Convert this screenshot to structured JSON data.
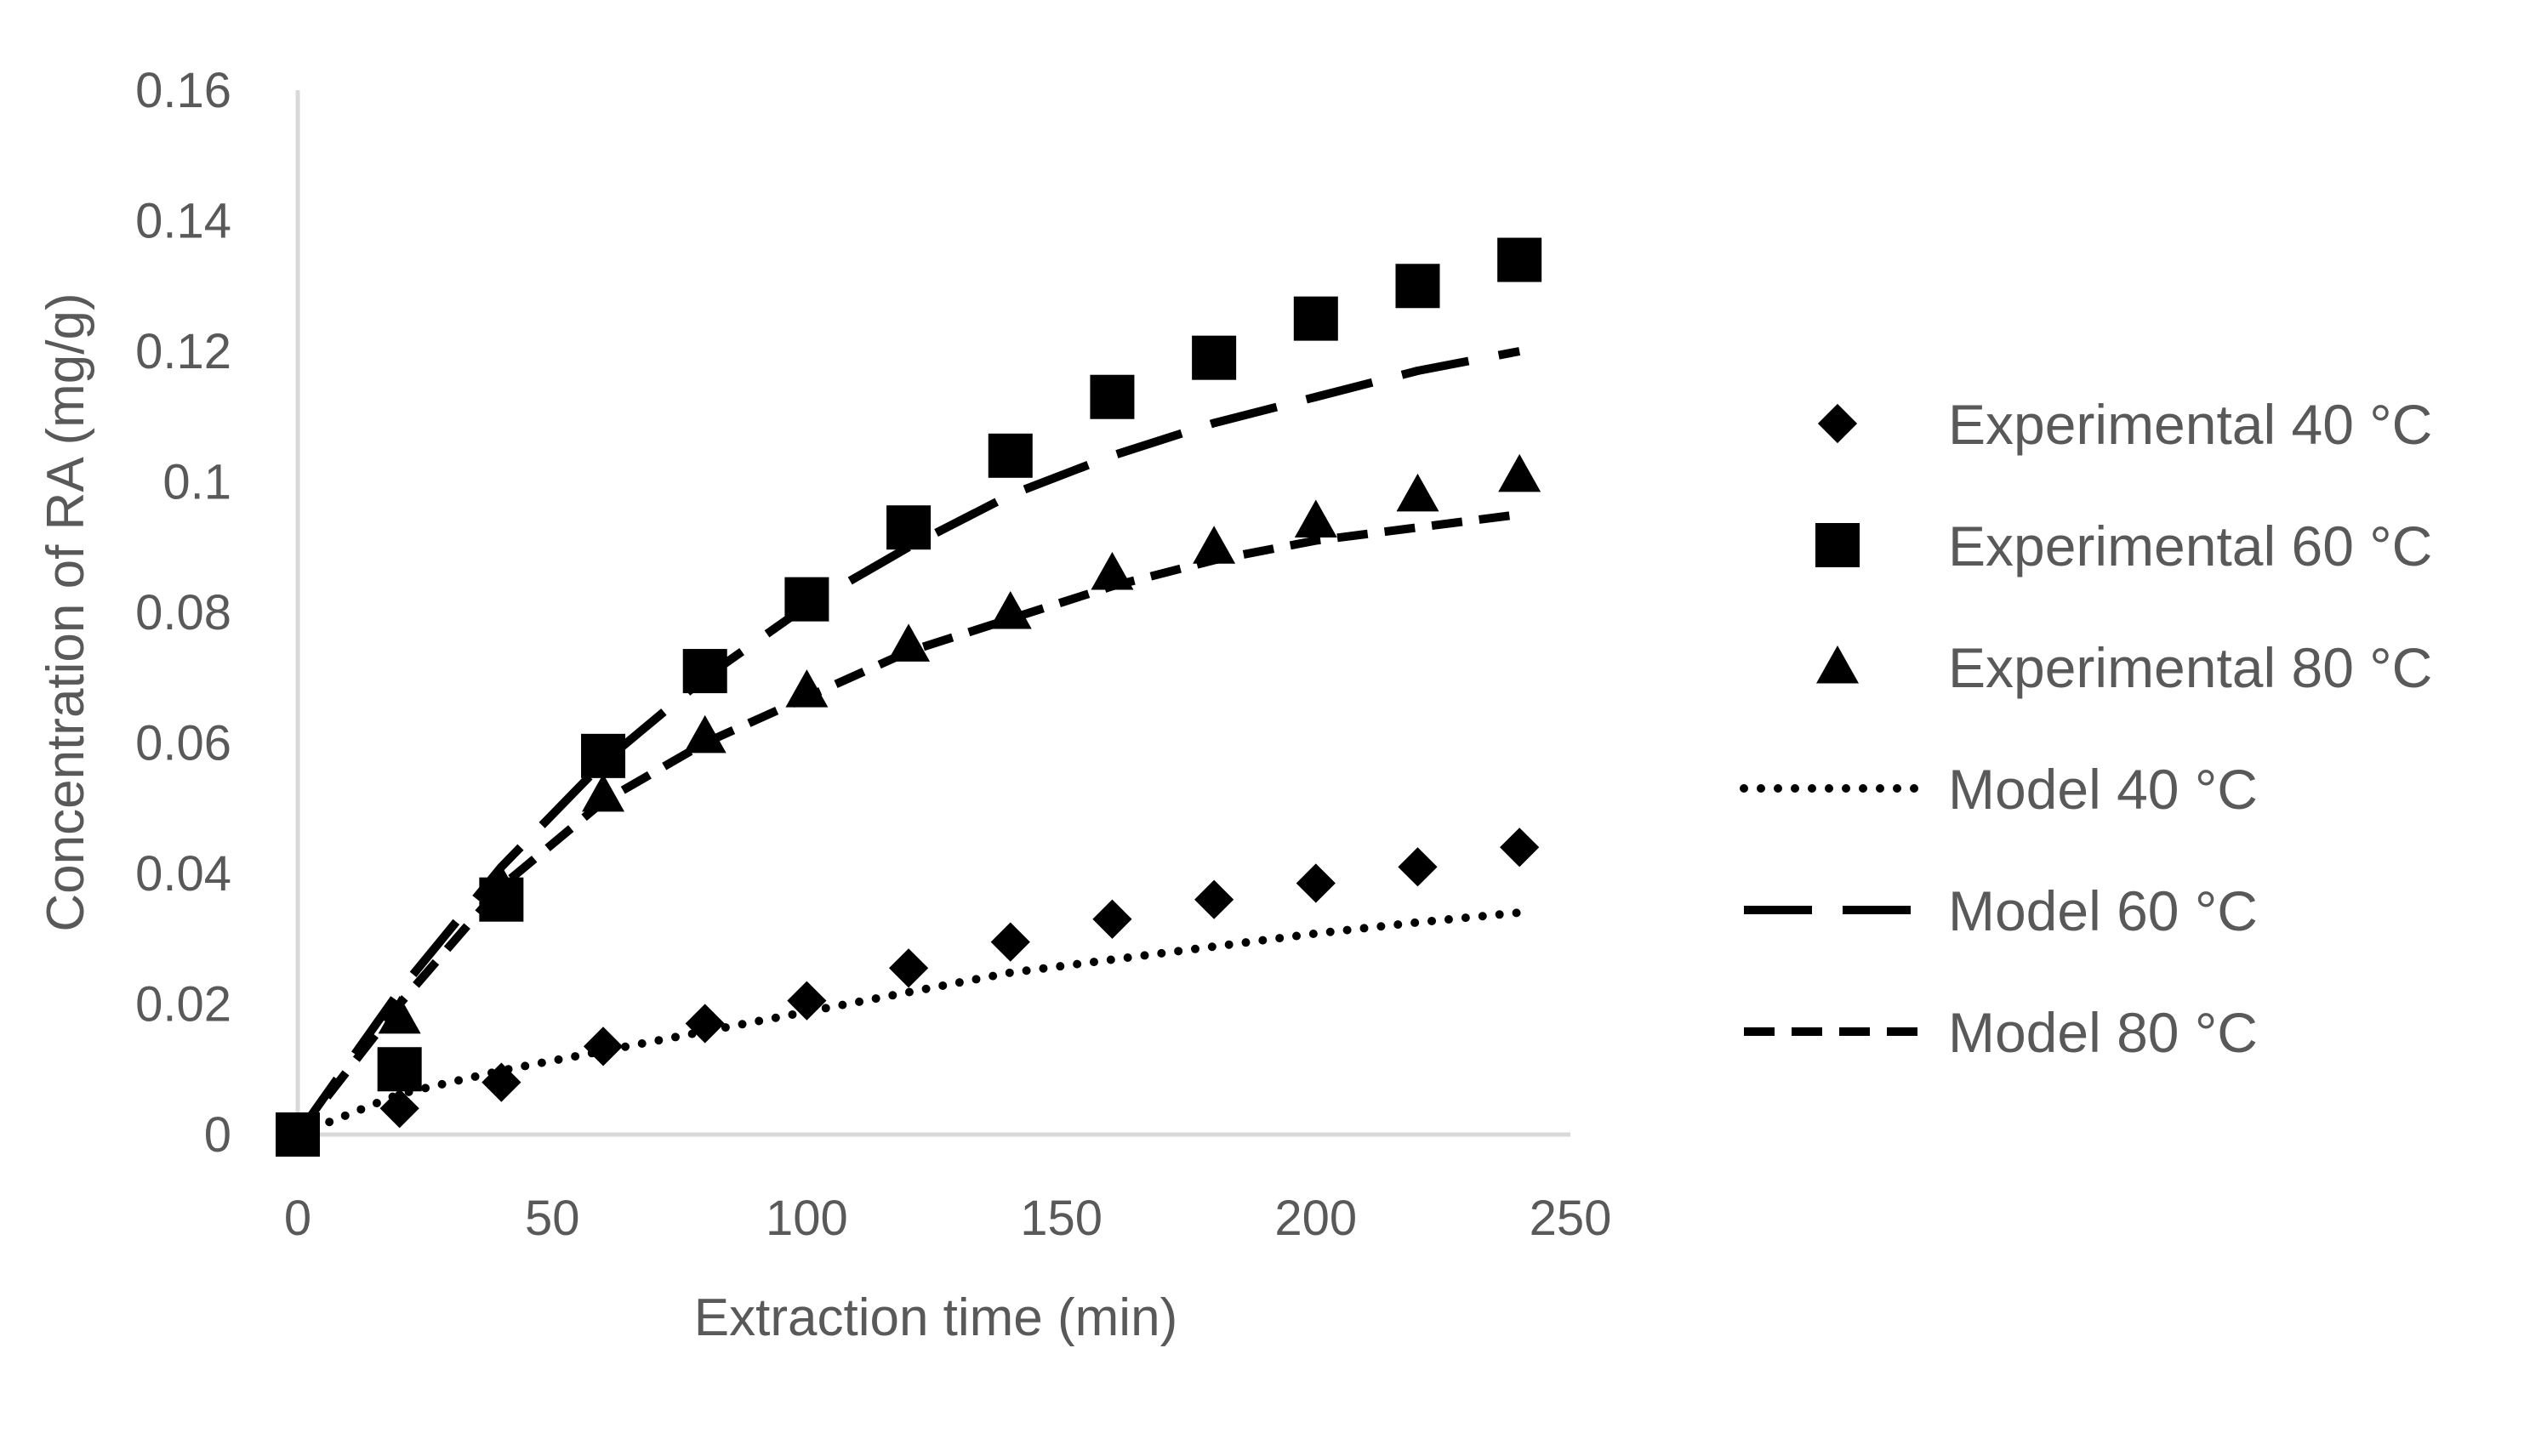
{
  "chart_data": {
    "type": "scatter",
    "title": "",
    "xlabel": "Extraction time (min)",
    "ylabel": "Concentration of RA (mg/g)",
    "xlim": [
      0,
      250
    ],
    "ylim": [
      0,
      0.16
    ],
    "x_ticks": [
      0,
      50,
      100,
      150,
      200,
      250
    ],
    "y_ticks": [
      0,
      0.02,
      0.04,
      0.06,
      0.08,
      0.1,
      0.12,
      0.14,
      0.16
    ],
    "x_tick_labels": [
      "0",
      "50",
      "100",
      "150",
      "200",
      "250"
    ],
    "y_tick_labels": [
      "0",
      "0.02",
      "0.04",
      "0.06",
      "0.08",
      "0.1",
      "0.12",
      "0.14",
      "0.16"
    ],
    "grid": false,
    "legend_position": "right",
    "series": [
      {
        "name": "Experimental 40 °C",
        "kind": "marker",
        "marker": "diamond",
        "color": "#000000",
        "x": [
          0,
          20,
          40,
          60,
          80,
          100,
          120,
          140,
          160,
          180,
          200,
          220,
          240
        ],
        "y": [
          0,
          0.004,
          0.008,
          0.0135,
          0.017,
          0.0205,
          0.0255,
          0.0295,
          0.033,
          0.036,
          0.0385,
          0.041,
          0.044
        ]
      },
      {
        "name": "Experimental 60 °C",
        "kind": "marker",
        "marker": "square",
        "color": "#000000",
        "x": [
          0,
          20,
          40,
          60,
          80,
          100,
          120,
          140,
          160,
          180,
          200,
          220,
          240
        ],
        "y": [
          0,
          0.01,
          0.036,
          0.058,
          0.071,
          0.082,
          0.093,
          0.104,
          0.113,
          0.119,
          0.125,
          0.13,
          0.134
        ]
      },
      {
        "name": "Experimental 80 °C",
        "kind": "marker",
        "marker": "triangle",
        "color": "#000000",
        "x": [
          0,
          20,
          40,
          60,
          80,
          100,
          120,
          140,
          160,
          180,
          200,
          220,
          240
        ],
        "y": [
          0,
          0.018,
          0.038,
          0.052,
          0.061,
          0.068,
          0.075,
          0.08,
          0.086,
          0.09,
          0.094,
          0.098,
          0.101
        ]
      },
      {
        "name": "Model 40 °C",
        "kind": "line",
        "dash": "dotted",
        "color": "#000000",
        "x": [
          0,
          20,
          40,
          60,
          80,
          100,
          120,
          140,
          160,
          180,
          200,
          220,
          240
        ],
        "y": [
          0,
          0.0062,
          0.0098,
          0.0128,
          0.0158,
          0.0188,
          0.0218,
          0.0248,
          0.0268,
          0.0288,
          0.0308,
          0.0325,
          0.034
        ]
      },
      {
        "name": "Model 60 °C",
        "kind": "line",
        "dash": "long-dash",
        "color": "#000000",
        "x": [
          0,
          20,
          40,
          60,
          80,
          100,
          120,
          140,
          160,
          180,
          200,
          220,
          240
        ],
        "y": [
          0,
          0.022,
          0.041,
          0.057,
          0.07,
          0.081,
          0.09,
          0.098,
          0.104,
          0.109,
          0.113,
          0.117,
          0.12
        ]
      },
      {
        "name": "Model 80 °C",
        "kind": "line",
        "dash": "short-dash",
        "color": "#000000",
        "x": [
          0,
          20,
          40,
          60,
          80,
          100,
          120,
          140,
          160,
          180,
          200,
          220,
          240
        ],
        "y": [
          0,
          0.02,
          0.038,
          0.051,
          0.06,
          0.067,
          0.074,
          0.079,
          0.084,
          0.088,
          0.091,
          0.093,
          0.095
        ]
      }
    ]
  },
  "colors": {
    "axis": "#d9d9d9",
    "text": "#595959",
    "series": "#000000"
  }
}
